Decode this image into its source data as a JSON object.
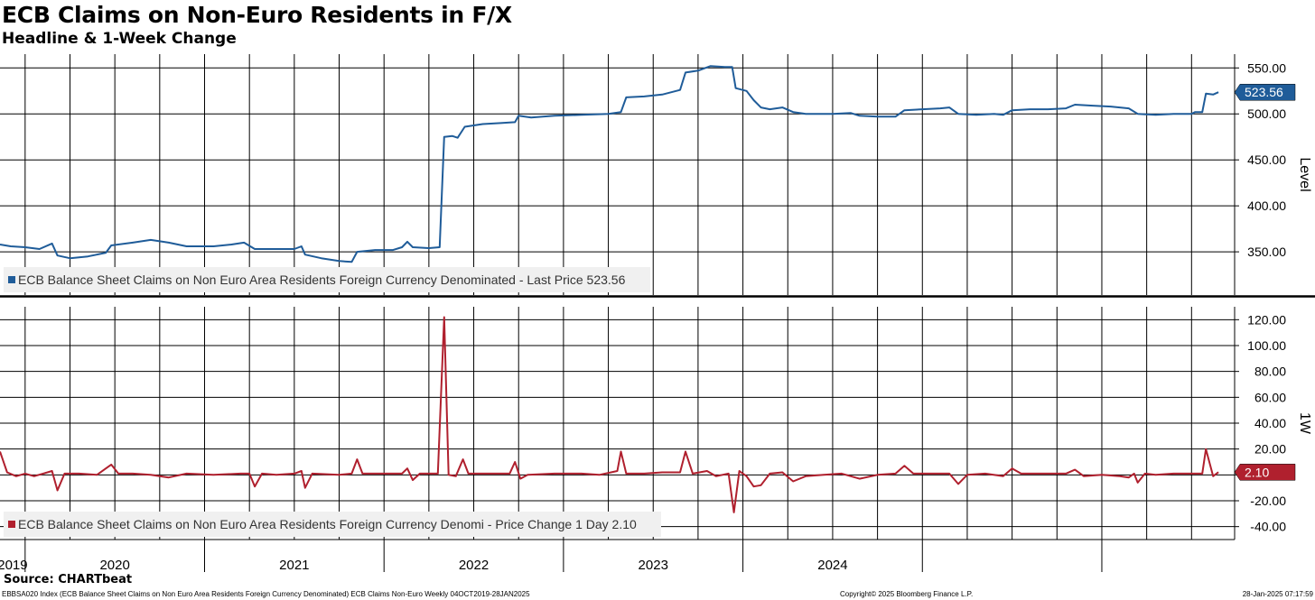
{
  "header": {
    "title": "ECB Claims on Non-Euro Residents in F/X",
    "subtitle": "Headline & 1-Week Change"
  },
  "footer": {
    "source": "Source: CHARTbeat",
    "left": "EBBSA020 Index (ECB Balance Sheet Claims on Non Euro Area Residents Foreign Currency Denominated) ECB Claims Non-Euro  Weekly 04OCT2019-28JAN2025",
    "copyright": "Copyright© 2025 Bloomberg Finance L.P.",
    "timestamp": "28-Jan-2025 07:17:59"
  },
  "colors": {
    "level": "#1f5c99",
    "change": "#b0202e",
    "grid": "#000000",
    "legend_bg": "#f0f0f0"
  },
  "chart_data": [
    {
      "type": "line",
      "name": "level-panel",
      "ylabel": "Level",
      "ylim": [
        303,
        565
      ],
      "yticks": [
        550,
        500,
        450,
        400,
        350
      ],
      "tick_labels": [
        "550.00",
        "500.00",
        "450.00",
        "400.00",
        "350.00"
      ],
      "last_value_label": "523.56",
      "legend": "ECB Balance Sheet Claims on Non Euro Area Residents Foreign Currency Denominated - Last Price 523.56",
      "series": [
        {
          "name": "ECB Balance Sheet Claims on Non Euro Area Residents Foreign Currency Denominated",
          "points": [
            [
              2019.76,
              358
            ],
            [
              2019.82,
              356
            ],
            [
              2019.9,
              355
            ],
            [
              2019.98,
              353
            ],
            [
              2020.05,
              359
            ],
            [
              2020.08,
              346
            ],
            [
              2020.15,
              343
            ],
            [
              2020.25,
              345
            ],
            [
              2020.35,
              349
            ],
            [
              2020.38,
              357
            ],
            [
              2020.5,
              360
            ],
            [
              2020.6,
              363
            ],
            [
              2020.7,
              360
            ],
            [
              2020.8,
              356
            ],
            [
              2020.95,
              356
            ],
            [
              2021.05,
              358
            ],
            [
              2021.12,
              360
            ],
            [
              2021.18,
              353
            ],
            [
              2021.3,
              353
            ],
            [
              2021.4,
              353
            ],
            [
              2021.44,
              356
            ],
            [
              2021.46,
              347
            ],
            [
              2021.55,
              343
            ],
            [
              2021.65,
              340
            ],
            [
              2021.72,
              339
            ],
            [
              2021.75,
              350
            ],
            [
              2021.85,
              352
            ],
            [
              2021.95,
              352
            ],
            [
              2022.0,
              355
            ],
            [
              2022.03,
              361
            ],
            [
              2022.06,
              355
            ],
            [
              2022.15,
              354
            ],
            [
              2022.21,
              355
            ],
            [
              2022.235,
              475
            ],
            [
              2022.28,
              476
            ],
            [
              2022.31,
              474
            ],
            [
              2022.35,
              486
            ],
            [
              2022.45,
              489
            ],
            [
              2022.55,
              490
            ],
            [
              2022.63,
              491
            ],
            [
              2022.65,
              498
            ],
            [
              2022.72,
              496
            ],
            [
              2022.85,
              498
            ],
            [
              2023.0,
              499
            ],
            [
              2023.15,
              500
            ],
            [
              2023.22,
              502
            ],
            [
              2023.25,
              518
            ],
            [
              2023.35,
              519
            ],
            [
              2023.45,
              521
            ],
            [
              2023.55,
              526
            ],
            [
              2023.58,
              545
            ],
            [
              2023.65,
              547
            ],
            [
              2023.72,
              552
            ],
            [
              2023.8,
              551
            ],
            [
              2023.84,
              551
            ],
            [
              2023.86,
              528
            ],
            [
              2023.92,
              525
            ],
            [
              2023.96,
              515
            ],
            [
              2024.0,
              507
            ],
            [
              2024.05,
              505
            ],
            [
              2024.12,
              507
            ],
            [
              2024.18,
              502
            ],
            [
              2024.25,
              500
            ],
            [
              2024.4,
              500
            ],
            [
              2024.5,
              501
            ],
            [
              2024.55,
              498
            ],
            [
              2024.65,
              497
            ],
            [
              2024.75,
              497
            ],
            [
              2024.8,
              504
            ],
            [
              2024.9,
              505
            ],
            [
              2025.0,
              506
            ],
            [
              2025.05,
              507
            ],
            [
              2025.1,
              500
            ],
            [
              2025.2,
              499
            ],
            [
              2025.3,
              500
            ],
            [
              2025.35,
              499
            ],
            [
              2025.4,
              504
            ],
            [
              2025.5,
              505
            ],
            [
              2025.6,
              505
            ],
            [
              2025.7,
              506
            ],
            [
              2025.75,
              510
            ],
            [
              2025.85,
              509
            ],
            [
              2025.95,
              508
            ],
            [
              2026.05,
              506
            ],
            [
              2026.1,
              500
            ],
            [
              2026.2,
              499
            ],
            [
              2026.3,
              500
            ],
            [
              2026.4,
              500
            ],
            [
              2026.42,
              502
            ],
            [
              2026.46,
              502
            ],
            [
              2026.48,
              522
            ],
            [
              2026.52,
              521
            ],
            [
              2026.55,
              523.56
            ]
          ]
        }
      ]
    },
    {
      "type": "line",
      "name": "change-panel",
      "ylabel": "1W",
      "ylim": [
        -50,
        130
      ],
      "yticks": [
        120,
        100,
        80,
        60,
        40,
        20,
        0,
        -20,
        -40
      ],
      "tick_labels": [
        "120.00",
        "100.00",
        "80.00",
        "60.00",
        "40.00",
        "20.00",
        "",
        "-20.00",
        "-40.00"
      ],
      "last_value_label": "2.10",
      "legend": "ECB Balance Sheet Claims on Non Euro Area Residents Foreign Currency Denomi - Price Change 1 Day 2.10",
      "series": [
        {
          "name": "ECB Balance Sheet Claims on Non Euro Area Residents Foreign Currency Denomi - Price Change 1 Day",
          "points": [
            [
              2019.76,
              18
            ],
            [
              2019.8,
              2
            ],
            [
              2019.85,
              -1
            ],
            [
              2019.9,
              1
            ],
            [
              2019.95,
              -1
            ],
            [
              2020.0,
              1
            ],
            [
              2020.05,
              3
            ],
            [
              2020.08,
              -12
            ],
            [
              2020.12,
              1
            ],
            [
              2020.2,
              1
            ],
            [
              2020.3,
              0
            ],
            [
              2020.35,
              5
            ],
            [
              2020.38,
              8
            ],
            [
              2020.42,
              1
            ],
            [
              2020.5,
              1
            ],
            [
              2020.6,
              0
            ],
            [
              2020.7,
              -2
            ],
            [
              2020.8,
              1
            ],
            [
              2020.95,
              0
            ],
            [
              2021.1,
              1
            ],
            [
              2021.15,
              1
            ],
            [
              2021.18,
              -9
            ],
            [
              2021.22,
              1
            ],
            [
              2021.3,
              0
            ],
            [
              2021.4,
              1
            ],
            [
              2021.44,
              3
            ],
            [
              2021.46,
              -10
            ],
            [
              2021.5,
              1
            ],
            [
              2021.65,
              0
            ],
            [
              2021.72,
              1
            ],
            [
              2021.75,
              12
            ],
            [
              2021.78,
              1
            ],
            [
              2021.9,
              1
            ],
            [
              2022.0,
              1
            ],
            [
              2022.03,
              5
            ],
            [
              2022.06,
              -4
            ],
            [
              2022.1,
              1
            ],
            [
              2022.2,
              1
            ],
            [
              2022.235,
              122
            ],
            [
              2022.26,
              0
            ],
            [
              2022.3,
              -1
            ],
            [
              2022.34,
              12
            ],
            [
              2022.37,
              1
            ],
            [
              2022.5,
              1
            ],
            [
              2022.6,
              1
            ],
            [
              2022.63,
              10
            ],
            [
              2022.66,
              -3
            ],
            [
              2022.7,
              0
            ],
            [
              2022.85,
              1
            ],
            [
              2023.0,
              1
            ],
            [
              2023.1,
              0
            ],
            [
              2023.2,
              3
            ],
            [
              2023.22,
              18
            ],
            [
              2023.25,
              1
            ],
            [
              2023.35,
              1
            ],
            [
              2023.45,
              2
            ],
            [
              2023.55,
              2
            ],
            [
              2023.58,
              18
            ],
            [
              2023.62,
              1
            ],
            [
              2023.7,
              3
            ],
            [
              2023.75,
              -1
            ],
            [
              2023.82,
              1
            ],
            [
              2023.85,
              -29
            ],
            [
              2023.88,
              3
            ],
            [
              2023.92,
              -1
            ],
            [
              2023.96,
              -9
            ],
            [
              2024.0,
              -8
            ],
            [
              2024.05,
              1
            ],
            [
              2024.12,
              2
            ],
            [
              2024.18,
              -5
            ],
            [
              2024.25,
              -1
            ],
            [
              2024.35,
              0
            ],
            [
              2024.45,
              1
            ],
            [
              2024.55,
              -3
            ],
            [
              2024.65,
              0
            ],
            [
              2024.75,
              1
            ],
            [
              2024.8,
              7
            ],
            [
              2024.85,
              1
            ],
            [
              2025.0,
              1
            ],
            [
              2025.05,
              1
            ],
            [
              2025.1,
              -7
            ],
            [
              2025.15,
              0
            ],
            [
              2025.25,
              1
            ],
            [
              2025.35,
              -1
            ],
            [
              2025.4,
              5
            ],
            [
              2025.45,
              1
            ],
            [
              2025.6,
              1
            ],
            [
              2025.7,
              1
            ],
            [
              2025.75,
              4
            ],
            [
              2025.8,
              -1
            ],
            [
              2025.9,
              0
            ],
            [
              2026.0,
              -1
            ],
            [
              2026.05,
              -2
            ],
            [
              2026.08,
              1
            ],
            [
              2026.1,
              -6
            ],
            [
              2026.14,
              1
            ],
            [
              2026.2,
              0
            ],
            [
              2026.3,
              1
            ],
            [
              2026.4,
              1
            ],
            [
              2026.46,
              1
            ],
            [
              2026.48,
              20
            ],
            [
              2026.52,
              -1
            ],
            [
              2026.55,
              2.1
            ]
          ]
        }
      ]
    },
    {
      "type": "axis",
      "name": "time-axis",
      "xlim": [
        2019.76,
        2026.64
      ],
      "gridlines": [
        2019.9,
        2020.15,
        2020.4,
        2020.65,
        2020.9,
        2021.15,
        2021.4,
        2021.65,
        2021.9,
        2022.15,
        2022.4,
        2022.65,
        2022.9,
        2023.15,
        2023.4,
        2023.65,
        2023.9,
        2024.15,
        2024.4,
        2024.65,
        2024.9,
        2025.15,
        2025.4,
        2025.65,
        2025.9,
        2026.15,
        2026.4
      ],
      "year_separators": [
        2019.9,
        2020.9,
        2021.9,
        2022.9,
        2023.9,
        2024.9,
        2025.9
      ],
      "year_labels": [
        {
          "label": "2019",
          "at": 2019.83
        },
        {
          "label": "2020",
          "at": 2020.4
        },
        {
          "label": "2021",
          "at": 2021.4
        },
        {
          "label": "2022",
          "at": 2022.4
        },
        {
          "label": "2023",
          "at": 2023.4
        },
        {
          "label": "2024",
          "at": 2024.4
        }
      ]
    }
  ]
}
